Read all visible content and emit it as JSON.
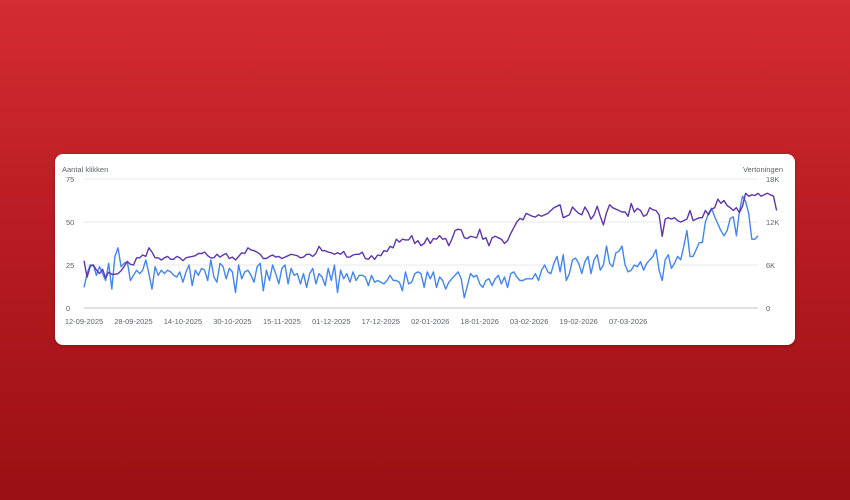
{
  "colors": {
    "clicks": "#4285f4",
    "impressions": "#5e35b1",
    "grid": "#e8eaed",
    "baseline": "#bdc1c6"
  },
  "chart_data": {
    "type": "line",
    "left_axis_label": "Aantal klikken",
    "right_axis_label": "Vertoningen",
    "left_ticks": [
      "0",
      "25",
      "50",
      "75"
    ],
    "left_tick_values": [
      0,
      25,
      50,
      75
    ],
    "right_ticks": [
      "0",
      "6K",
      "12K",
      "18K"
    ],
    "right_tick_values": [
      0,
      6000,
      12000,
      18000
    ],
    "ylim_left": [
      0,
      75
    ],
    "ylim_right": [
      0,
      18000
    ],
    "x_ticks": [
      "12-09-2025",
      "28-09-2025",
      "14-10-2025",
      "30-10-2025",
      "15-11-2025",
      "01-12-2025",
      "17-12-2025",
      "02-01-2026",
      "18-01-2026",
      "03-02-2026",
      "19-02-2026",
      "07-03-2026"
    ],
    "x_range": [
      "12-09-2025",
      "10-03-2026"
    ],
    "grid": true,
    "series": [
      {
        "name": "Aantal klikken",
        "axis": "left",
        "values": [
          12,
          20,
          25,
          25,
          19,
          24,
          20,
          16,
          26,
          11,
          30,
          35,
          24,
          26,
          27,
          16,
          19,
          22,
          20,
          22,
          28,
          20,
          11,
          24,
          19,
          22,
          20,
          22,
          21,
          19,
          18,
          21,
          15,
          21,
          25,
          13,
          22,
          19,
          23,
          22,
          16,
          28,
          18,
          15,
          26,
          24,
          17,
          23,
          21,
          9,
          25,
          17,
          21,
          22,
          19,
          15,
          24,
          26,
          10,
          22,
          16,
          25,
          20,
          14,
          23,
          25,
          14,
          23,
          19,
          20,
          14,
          20,
          12,
          20,
          23,
          14,
          20,
          18,
          13,
          23,
          16,
          25,
          9,
          22,
          17,
          20,
          15,
          21,
          16,
          19,
          19,
          18,
          13,
          19,
          15,
          16,
          15,
          14,
          16,
          19,
          16,
          16,
          15,
          10,
          21,
          14,
          15,
          20,
          21,
          20,
          12,
          21,
          17,
          21,
          12,
          18,
          16,
          11,
          15,
          17,
          19,
          21,
          17,
          6,
          13,
          20,
          18,
          19,
          14,
          12,
          16,
          17,
          13,
          17,
          19,
          14,
          18,
          12,
          20,
          21,
          18,
          16,
          16,
          17,
          17,
          17,
          20,
          16,
          22,
          25,
          21,
          20,
          26,
          30,
          21,
          31,
          16,
          20,
          28,
          29,
          26,
          20,
          27,
          30,
          20,
          28,
          31,
          22,
          25,
          36,
          26,
          24,
          32,
          33,
          36,
          25,
          21,
          22,
          25,
          24,
          27,
          22,
          26,
          28,
          30,
          34,
          22,
          16,
          28,
          31,
          23,
          26,
          30,
          28,
          36,
          45,
          30,
          30,
          34,
          38,
          38,
          50,
          55,
          58,
          53,
          49,
          45,
          42,
          45,
          52,
          53,
          42,
          56,
          65,
          62,
          55,
          40,
          40,
          42
        ]
      },
      {
        "name": "Vertoningen",
        "axis": "right",
        "values": [
          6600,
          4300,
          5800,
          6000,
          5300,
          4800,
          5400,
          4200,
          5000,
          4700,
          4700,
          4800,
          5200,
          5800,
          6500,
          6100,
          6000,
          7000,
          7000,
          7400,
          7200,
          8400,
          7800,
          7000,
          7000,
          6700,
          7000,
          7200,
          6800,
          6800,
          7200,
          7000,
          6600,
          7000,
          7100,
          7200,
          7300,
          7600,
          7600,
          7800,
          7300,
          7000,
          7000,
          7500,
          7100,
          7400,
          7600,
          6900,
          7100,
          6700,
          7200,
          7700,
          7600,
          8400,
          8100,
          8000,
          7800,
          7500,
          6900,
          6900,
          7200,
          7400,
          7100,
          7200,
          6900,
          7100,
          7300,
          7500,
          7400,
          7300,
          7000,
          7100,
          7500,
          7500,
          7200,
          7600,
          8600,
          8000,
          8000,
          7800,
          7700,
          7500,
          7700,
          7500,
          7900,
          7100,
          7100,
          7400,
          7500,
          7500,
          7800,
          6900,
          6800,
          7300,
          6800,
          7400,
          7300,
          8000,
          7900,
          8600,
          8400,
          9600,
          9200,
          9600,
          9500,
          9500,
          10100,
          9000,
          9400,
          8700,
          9000,
          9800,
          9000,
          9700,
          9600,
          10100,
          9600,
          9700,
          8700,
          9600,
          10800,
          11000,
          10900,
          9800,
          9700,
          10000,
          9900,
          9800,
          11000,
          9600,
          9800,
          8700,
          9800,
          10000,
          9800,
          9600,
          9000,
          9400,
          10400,
          11200,
          12000,
          12500,
          12300,
          13200,
          13000,
          12800,
          12700,
          13000,
          12800,
          13000,
          13200,
          13600,
          14000,
          14200,
          14400,
          12600,
          12800,
          13000,
          14100,
          13600,
          13200,
          13000,
          14100,
          13400,
          12400,
          13000,
          14200,
          12800,
          11600,
          13300,
          14400,
          14000,
          13800,
          13600,
          13400,
          13400,
          12800,
          14600,
          13400,
          13900,
          13600,
          12800,
          13000,
          14000,
          13700,
          13600,
          13000,
          10000,
          12400,
          12600,
          12400,
          12600,
          12200,
          12000,
          12200,
          12400,
          13600,
          12200,
          12400,
          12600,
          12600,
          13600,
          13000,
          13800,
          14000,
          15200,
          14600,
          15000,
          14300,
          14000,
          13600,
          14000,
          13300,
          14200,
          16000,
          15600,
          15800,
          15700,
          16000,
          15600,
          15800,
          16000,
          15800,
          15600,
          13600
        ]
      }
    ]
  }
}
